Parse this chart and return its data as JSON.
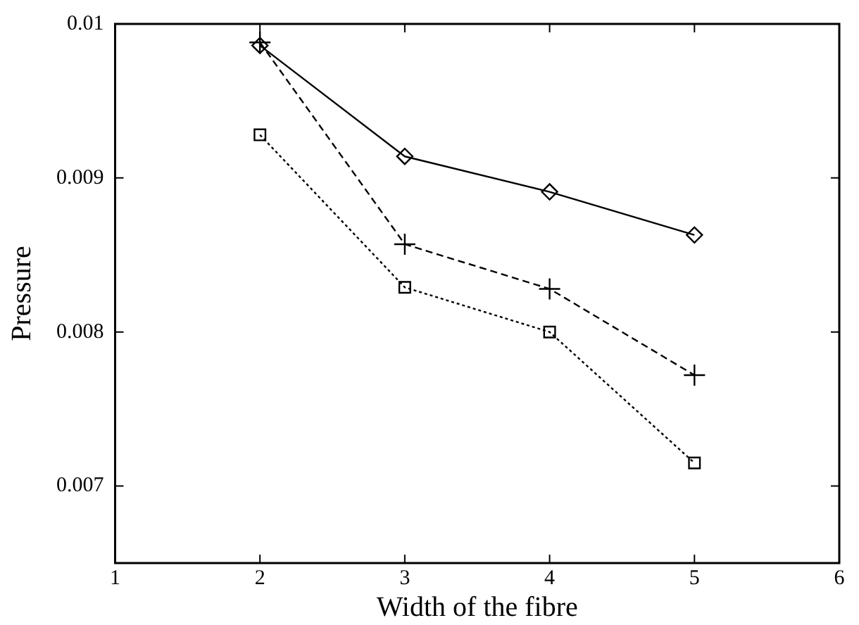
{
  "chart_data": {
    "type": "line",
    "xlabel": "Width of the fibre",
    "ylabel": "Pressure",
    "xlim": [
      1,
      6
    ],
    "xticks": [
      1,
      2,
      3,
      4,
      5,
      6
    ],
    "ylim": [
      0.0065,
      0.01
    ],
    "yticks": [
      0.007,
      0.008,
      0.009,
      0.01
    ],
    "grid": false,
    "legend": false,
    "series": [
      {
        "color": "#000000",
        "marker": "diamond",
        "line_style": "solid",
        "x": [
          2,
          3,
          4,
          5
        ],
        "values": [
          0.00986,
          0.00914,
          0.00891,
          0.00863
        ]
      },
      {
        "color": "#000000",
        "marker": "cross",
        "line_style": "dashed",
        "x": [
          2,
          3,
          4,
          5
        ],
        "values": [
          0.00988,
          0.00857,
          0.00828,
          0.00772
        ]
      },
      {
        "color": "#000000",
        "marker": "square",
        "line_style": "dotted",
        "x": [
          2,
          3,
          4,
          5
        ],
        "values": [
          0.00928,
          0.00829,
          0.008,
          0.00715
        ]
      }
    ]
  }
}
